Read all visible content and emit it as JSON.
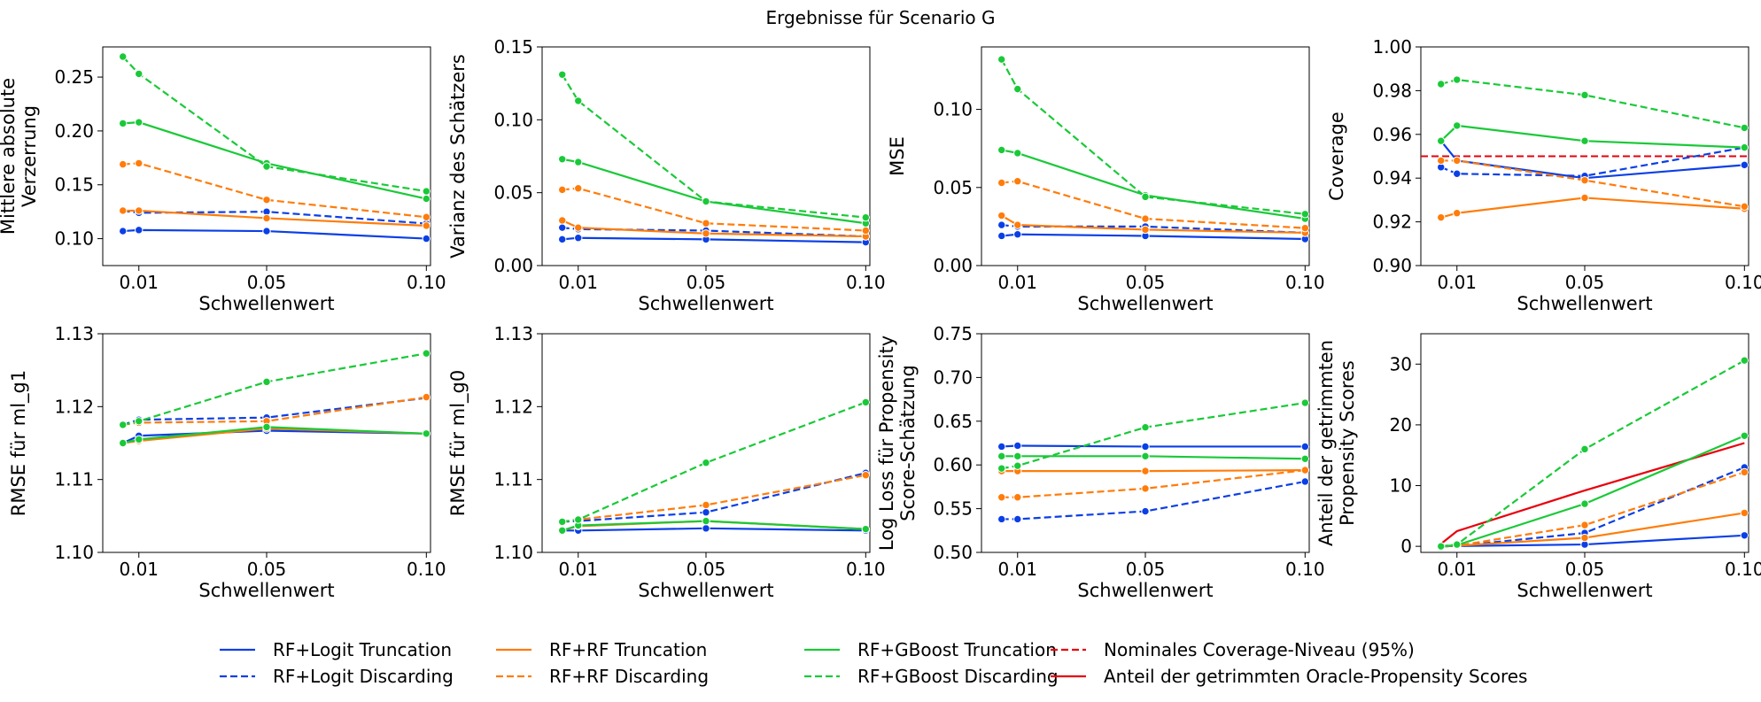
{
  "figure": {
    "title": "Ergebnisse für Scenario G"
  },
  "legend": [
    {
      "label": "RF+Logit Truncation",
      "color": "#0b3fe6",
      "dash": false
    },
    {
      "label": "RF+Logit Discarding",
      "color": "#0b3fe6",
      "dash": true
    },
    {
      "label": "RF+RF Truncation",
      "color": "#ff7c0a",
      "dash": false
    },
    {
      "label": "RF+RF Discarding",
      "color": "#ff7c0a",
      "dash": true
    },
    {
      "label": "RF+GBoost Truncation",
      "color": "#1ac938",
      "dash": false
    },
    {
      "label": "RF+GBoost Discarding",
      "color": "#1ac938",
      "dash": true
    },
    {
      "label": "Nominales Coverage-Niveau (95%)",
      "color": "#e8000b",
      "dash": true
    },
    {
      "label": "Anteil der getrimmten Oracle-Propensity Scores",
      "color": "#e8000b",
      "dash": false
    }
  ],
  "chart_data": [
    {
      "type": "line",
      "ylabel": [
        "Mittlere absolute",
        "Verzerrung"
      ],
      "xlabel": "Schwellenwert",
      "x": [
        0.005,
        0.01,
        0.05,
        0.1
      ],
      "xticks": [
        0.01,
        0.05,
        0.1
      ],
      "xtick_labels": [
        "0.01",
        "0.05",
        "0.10"
      ],
      "ylim": [
        0.075,
        0.278
      ],
      "yticks": [
        0.1,
        0.15,
        0.2,
        0.25
      ],
      "ytick_labels": [
        "0.10",
        "0.15",
        "0.20",
        "0.25"
      ],
      "series": [
        {
          "name": "RF+Logit Truncation",
          "values": [
            0.107,
            0.108,
            0.107,
            0.1
          ]
        },
        {
          "name": "RF+Logit Discarding",
          "values": [
            0.126,
            0.124,
            0.125,
            0.114
          ]
        },
        {
          "name": "RF+RF Truncation",
          "values": [
            0.126,
            0.126,
            0.119,
            0.112
          ]
        },
        {
          "name": "RF+RF Discarding",
          "values": [
            0.169,
            0.17,
            0.136,
            0.12
          ]
        },
        {
          "name": "RF+GBoost Truncation",
          "values": [
            0.207,
            0.208,
            0.17,
            0.137
          ]
        },
        {
          "name": "RF+GBoost Discarding",
          "values": [
            0.269,
            0.253,
            0.167,
            0.144
          ]
        }
      ]
    },
    {
      "type": "line",
      "ylabel": [
        "Varianz des Schätzers"
      ],
      "xlabel": "Schwellenwert",
      "x": [
        0.005,
        0.01,
        0.05,
        0.1
      ],
      "xticks": [
        0.01,
        0.05,
        0.1
      ],
      "xtick_labels": [
        "0.01",
        "0.05",
        "0.10"
      ],
      "ylim": [
        0.0,
        0.15
      ],
      "yticks": [
        0.0,
        0.05,
        0.1,
        0.15
      ],
      "ytick_labels": [
        "0.00",
        "0.05",
        "0.10",
        "0.15"
      ],
      "series": [
        {
          "name": "RF+Logit Truncation",
          "values": [
            0.018,
            0.019,
            0.018,
            0.016
          ]
        },
        {
          "name": "RF+Logit Discarding",
          "values": [
            0.026,
            0.025,
            0.024,
            0.02
          ]
        },
        {
          "name": "RF+RF Truncation",
          "values": [
            0.031,
            0.026,
            0.022,
            0.02
          ]
        },
        {
          "name": "RF+RF Discarding",
          "values": [
            0.052,
            0.053,
            0.029,
            0.024
          ]
        },
        {
          "name": "RF+GBoost Truncation",
          "values": [
            0.073,
            0.071,
            0.044,
            0.029
          ]
        },
        {
          "name": "RF+GBoost Discarding",
          "values": [
            0.131,
            0.113,
            0.044,
            0.033
          ]
        }
      ]
    },
    {
      "type": "line",
      "ylabel": [
        "MSE"
      ],
      "xlabel": "Schwellenwert",
      "x": [
        0.005,
        0.01,
        0.05,
        0.1
      ],
      "xticks": [
        0.01,
        0.05,
        0.1
      ],
      "xtick_labels": [
        "0.01",
        "0.05",
        "0.10"
      ],
      "ylim": [
        0.0,
        0.14
      ],
      "yticks": [
        0.0,
        0.05,
        0.1
      ],
      "ytick_labels": [
        "0.00",
        "0.05",
        "0.10"
      ],
      "series": [
        {
          "name": "RF+Logit Truncation",
          "values": [
            0.019,
            0.02,
            0.019,
            0.017
          ]
        },
        {
          "name": "RF+Logit Discarding",
          "values": [
            0.026,
            0.025,
            0.025,
            0.021
          ]
        },
        {
          "name": "RF+RF Truncation",
          "values": [
            0.032,
            0.026,
            0.023,
            0.021
          ]
        },
        {
          "name": "RF+RF Discarding",
          "values": [
            0.053,
            0.054,
            0.03,
            0.024
          ]
        },
        {
          "name": "RF+GBoost Truncation",
          "values": [
            0.074,
            0.072,
            0.045,
            0.03
          ]
        },
        {
          "name": "RF+GBoost Discarding",
          "values": [
            0.132,
            0.113,
            0.044,
            0.033
          ]
        }
      ]
    },
    {
      "type": "line",
      "ylabel": [
        "Coverage"
      ],
      "xlabel": "Schwellenwert",
      "x": [
        0.005,
        0.01,
        0.05,
        0.1
      ],
      "xticks": [
        0.01,
        0.05,
        0.1
      ],
      "xtick_labels": [
        "0.01",
        "0.05",
        "0.10"
      ],
      "ylim": [
        0.9,
        1.0
      ],
      "yticks": [
        0.9,
        0.92,
        0.94,
        0.96,
        0.98,
        1.0
      ],
      "ytick_labels": [
        "0.90",
        "0.92",
        "0.94",
        "0.96",
        "0.98",
        "1.00"
      ],
      "hline": 0.95,
      "series": [
        {
          "name": "RF+Logit Truncation",
          "values": [
            0.957,
            0.948,
            0.94,
            0.946
          ]
        },
        {
          "name": "RF+Logit Discarding",
          "values": [
            0.945,
            0.942,
            0.941,
            0.954
          ]
        },
        {
          "name": "RF+RF Truncation",
          "values": [
            0.922,
            0.924,
            0.931,
            0.926
          ]
        },
        {
          "name": "RF+RF Discarding",
          "values": [
            0.948,
            0.948,
            0.939,
            0.927
          ]
        },
        {
          "name": "RF+GBoost Truncation",
          "values": [
            0.957,
            0.964,
            0.957,
            0.954
          ]
        },
        {
          "name": "RF+GBoost Discarding",
          "values": [
            0.983,
            0.985,
            0.978,
            0.963
          ]
        }
      ]
    },
    {
      "type": "line",
      "ylabel": [
        "RMSE für ml_g1"
      ],
      "xlabel": "Schwellenwert",
      "x": [
        0.005,
        0.01,
        0.05,
        0.1
      ],
      "xticks": [
        0.01,
        0.05,
        0.1
      ],
      "xtick_labels": [
        "0.01",
        "0.05",
        "0.10"
      ],
      "ylim": [
        1.1,
        1.13
      ],
      "yticks": [
        1.1,
        1.11,
        1.12,
        1.13
      ],
      "ytick_labels": [
        "1.10",
        "1.11",
        "1.12",
        "1.13"
      ],
      "series": [
        {
          "name": "RF+Logit Truncation",
          "values": [
            1.115,
            1.116,
            1.1167,
            1.1163
          ]
        },
        {
          "name": "RF+Logit Discarding",
          "values": [
            1.1175,
            1.1182,
            1.1185,
            1.1212
          ]
        },
        {
          "name": "RF+RF Truncation",
          "values": [
            1.115,
            1.1153,
            1.117,
            1.1163
          ]
        },
        {
          "name": "RF+RF Discarding",
          "values": [
            1.1175,
            1.1178,
            1.118,
            1.1213
          ]
        },
        {
          "name": "RF+GBoost Truncation",
          "values": [
            1.115,
            1.1155,
            1.1172,
            1.1163
          ]
        },
        {
          "name": "RF+GBoost Discarding",
          "values": [
            1.1175,
            1.118,
            1.1234,
            1.1273
          ]
        }
      ]
    },
    {
      "type": "line",
      "ylabel": [
        "RMSE für ml_g0"
      ],
      "xlabel": "Schwellenwert",
      "x": [
        0.005,
        0.01,
        0.05,
        0.1
      ],
      "xticks": [
        0.01,
        0.05,
        0.1
      ],
      "xtick_labels": [
        "0.01",
        "0.05",
        "0.10"
      ],
      "ylim": [
        1.1,
        1.13
      ],
      "yticks": [
        1.1,
        1.11,
        1.12,
        1.13
      ],
      "ytick_labels": [
        "1.10",
        "1.11",
        "1.12",
        "1.13"
      ],
      "series": [
        {
          "name": "RF+Logit Truncation",
          "values": [
            1.103,
            1.103,
            1.1033,
            1.103
          ]
        },
        {
          "name": "RF+Logit Discarding",
          "values": [
            1.1042,
            1.1043,
            1.1055,
            1.1109
          ]
        },
        {
          "name": "RF+RF Truncation",
          "values": [
            1.103,
            1.1036,
            1.1043,
            1.1032
          ]
        },
        {
          "name": "RF+RF Discarding",
          "values": [
            1.1042,
            1.1045,
            1.1065,
            1.1106
          ]
        },
        {
          "name": "RF+GBoost Truncation",
          "values": [
            1.103,
            1.1037,
            1.1043,
            1.1032
          ]
        },
        {
          "name": "RF+GBoost Discarding",
          "values": [
            1.1042,
            1.1045,
            1.1123,
            1.1206
          ]
        }
      ]
    },
    {
      "type": "line",
      "ylabel": [
        "Log Loss für Propensity",
        "Score-Schätzung"
      ],
      "xlabel": "Schwellenwert",
      "x": [
        0.005,
        0.01,
        0.05,
        0.1
      ],
      "xticks": [
        0.01,
        0.05,
        0.1
      ],
      "xtick_labels": [
        "0.01",
        "0.05",
        "0.10"
      ],
      "ylim": [
        0.5,
        0.75
      ],
      "yticks": [
        0.5,
        0.55,
        0.6,
        0.65,
        0.7,
        0.75
      ],
      "ytick_labels": [
        "0.50",
        "0.55",
        "0.60",
        "0.65",
        "0.70",
        "0.75"
      ],
      "series": [
        {
          "name": "RF+Logit Truncation",
          "values": [
            0.621,
            0.622,
            0.621,
            0.621
          ]
        },
        {
          "name": "RF+Logit Discarding",
          "values": [
            0.538,
            0.538,
            0.547,
            0.581
          ]
        },
        {
          "name": "RF+RF Truncation",
          "values": [
            0.593,
            0.593,
            0.593,
            0.594
          ]
        },
        {
          "name": "RF+RF Discarding",
          "values": [
            0.563,
            0.563,
            0.573,
            0.594
          ]
        },
        {
          "name": "RF+GBoost Truncation",
          "values": [
            0.61,
            0.61,
            0.61,
            0.607
          ]
        },
        {
          "name": "RF+GBoost Discarding",
          "values": [
            0.596,
            0.599,
            0.643,
            0.671
          ]
        }
      ]
    },
    {
      "type": "line",
      "ylabel": [
        "Anteil der getrimmten",
        "Propensity Scores"
      ],
      "xlabel": "Schwellenwert",
      "x": [
        0.005,
        0.01,
        0.05,
        0.1
      ],
      "xticks": [
        0.01,
        0.05,
        0.1
      ],
      "xtick_labels": [
        "0.01",
        "0.05",
        "0.10"
      ],
      "ylim": [
        -1.0,
        35.0
      ],
      "yticks": [
        0,
        10,
        20,
        30
      ],
      "ytick_labels": [
        "0",
        "10",
        "20",
        "30"
      ],
      "oracle": {
        "x": [
          0.005,
          0.01,
          0.05,
          0.1
        ],
        "values": [
          0.4,
          2.5,
          9.2,
          17.0
        ]
      },
      "series": [
        {
          "name": "RF+Logit Truncation",
          "values": [
            0.0,
            0.05,
            0.3,
            1.8
          ]
        },
        {
          "name": "RF+Logit Discarding",
          "values": [
            0.0,
            0.05,
            2.2,
            13.0
          ]
        },
        {
          "name": "RF+RF Truncation",
          "values": [
            0.0,
            0.1,
            1.4,
            5.5
          ]
        },
        {
          "name": "RF+RF Discarding",
          "values": [
            0.0,
            0.1,
            3.5,
            12.2
          ]
        },
        {
          "name": "RF+GBoost Truncation",
          "values": [
            0.0,
            0.2,
            7.0,
            18.2
          ]
        },
        {
          "name": "RF+GBoost Discarding",
          "values": [
            0.0,
            0.3,
            16.0,
            30.6
          ]
        }
      ]
    }
  ]
}
